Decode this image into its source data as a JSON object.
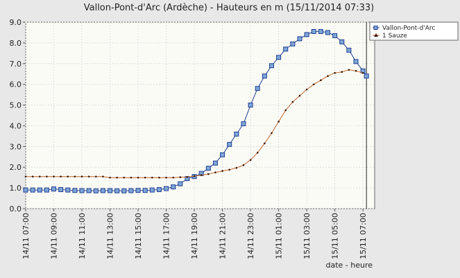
{
  "chart_data": {
    "type": "line",
    "title": "Vallon-Pont-d'Arc (Ardèche) - Hauteurs en m (15/11/2014 07:33)",
    "xlabel": "date - heure",
    "x": [
      "14/11 07:00",
      "14/11 07:30",
      "14/11 08:00",
      "14/11 08:30",
      "14/11 09:00",
      "14/11 09:30",
      "14/11 10:00",
      "14/11 10:30",
      "14/11 11:00",
      "14/11 11:30",
      "14/11 12:00",
      "14/11 12:30",
      "14/11 13:00",
      "14/11 13:30",
      "14/11 14:00",
      "14/11 14:30",
      "14/11 15:00",
      "14/11 15:30",
      "14/11 16:00",
      "14/11 16:30",
      "14/11 17:00",
      "14/11 17:30",
      "14/11 18:00",
      "14/11 18:30",
      "14/11 19:00",
      "14/11 19:30",
      "14/11 20:00",
      "14/11 20:30",
      "14/11 21:00",
      "14/11 21:30",
      "14/11 22:00",
      "14/11 22:30",
      "14/11 23:00",
      "14/11 23:30",
      "15/11 00:00",
      "15/11 00:30",
      "15/11 01:00",
      "15/11 01:30",
      "15/11 02:00",
      "15/11 02:30",
      "15/11 03:00",
      "15/11 03:30",
      "15/11 04:00",
      "15/11 04:30",
      "15/11 05:00",
      "15/11 05:30",
      "15/11 06:00",
      "15/11 06:30",
      "15/11 07:00",
      "15/11 07:15"
    ],
    "series": [
      {
        "name": "Vallon-Pont-d'Arc",
        "color": "#1f3f8f",
        "fill": "#7fa6d9",
        "marker": "square",
        "values": [
          0.9,
          0.9,
          0.9,
          0.9,
          0.95,
          0.92,
          0.9,
          0.88,
          0.87,
          0.87,
          0.86,
          0.87,
          0.87,
          0.86,
          0.86,
          0.87,
          0.88,
          0.88,
          0.9,
          0.92,
          0.97,
          1.05,
          1.2,
          1.45,
          1.55,
          1.7,
          1.95,
          2.2,
          2.6,
          3.1,
          3.6,
          4.1,
          5.0,
          5.8,
          6.4,
          6.9,
          7.3,
          7.7,
          7.95,
          8.2,
          8.4,
          8.55,
          8.55,
          8.5,
          8.35,
          8.05,
          7.65,
          7.1,
          6.65,
          6.4
        ]
      },
      {
        "name": "1 Sauze",
        "color": "#c0642a",
        "fill": "#3a1a08",
        "marker": "dot",
        "values": [
          1.55,
          1.55,
          1.55,
          1.55,
          1.55,
          1.55,
          1.55,
          1.55,
          1.55,
          1.55,
          1.55,
          1.55,
          1.5,
          1.5,
          1.5,
          1.5,
          1.5,
          1.5,
          1.5,
          1.5,
          1.5,
          1.5,
          1.52,
          1.53,
          1.57,
          1.62,
          1.67,
          1.75,
          1.82,
          1.88,
          1.97,
          2.1,
          2.35,
          2.7,
          3.15,
          3.65,
          4.2,
          4.75,
          5.15,
          5.45,
          5.75,
          6.0,
          6.2,
          6.4,
          6.55,
          6.6,
          6.7,
          6.65,
          6.55,
          null
        ]
      }
    ],
    "xlim": [
      "14/11 07:00",
      "15/11 07:50"
    ],
    "xticks": [
      "14/11 07:00",
      "14/11 09:00",
      "14/11 11:00",
      "14/11 13:00",
      "14/11 15:00",
      "14/11 17:00",
      "14/11 19:00",
      "14/11 21:00",
      "14/11 23:00",
      "15/11 01:00",
      "15/11 03:00",
      "15/11 05:00",
      "15/11 07:00"
    ],
    "ylim": [
      0,
      9
    ],
    "yticks": [
      {
        "value": 0,
        "label": "0.0"
      },
      {
        "value": 1,
        "label": "1.0"
      },
      {
        "value": 2,
        "label": "2.0"
      },
      {
        "value": 3,
        "label": "3.0"
      },
      {
        "value": 4,
        "label": "4.0"
      },
      {
        "value": 5,
        "label": "5.0"
      },
      {
        "value": 6,
        "label": "6.0"
      },
      {
        "value": 7,
        "label": "7.0"
      },
      {
        "value": 8,
        "label": "8.0"
      },
      {
        "value": 9,
        "label": "9.0"
      }
    ],
    "grid": true,
    "now_line": "15/11 07:15",
    "legend": "right"
  }
}
